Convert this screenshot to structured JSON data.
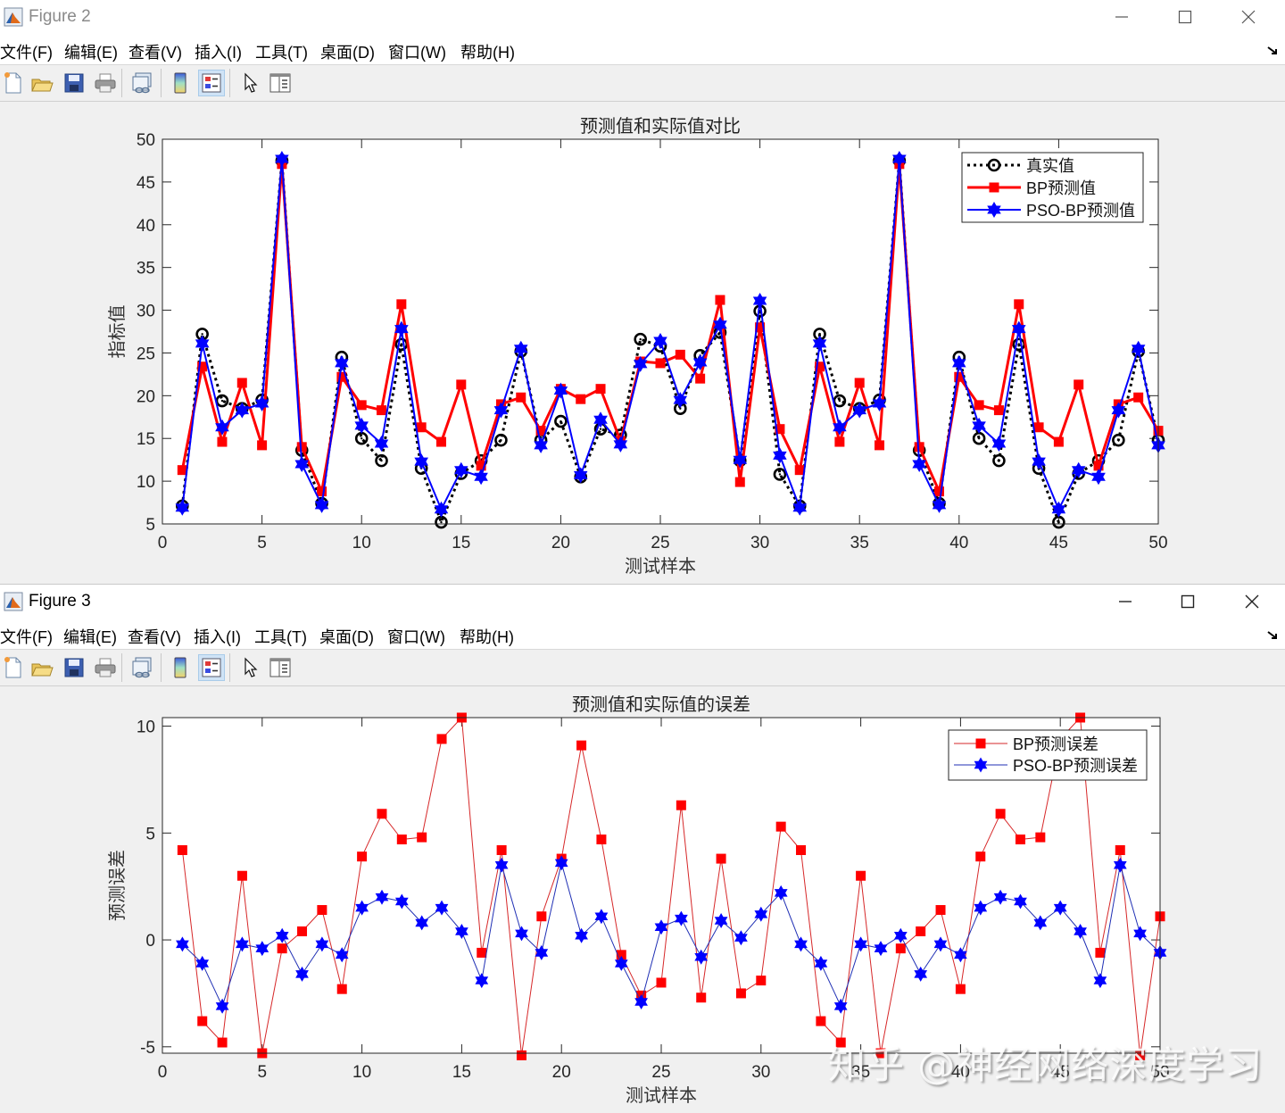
{
  "windows": [
    {
      "title": "Figure 2",
      "menu": [
        "文件(F)",
        "编辑(E)",
        "查看(V)",
        "插入(I)",
        "工具(T)",
        "桌面(D)",
        "窗口(W)",
        "帮助(H)"
      ],
      "toolbar": [
        "new-figure",
        "open-file",
        "save",
        "print",
        "link-plot",
        "insert-colorbar",
        "insert-legend",
        "edit-plot",
        "property-inspector"
      ],
      "controls": [
        "minimize",
        "maximize",
        "close"
      ]
    },
    {
      "title": "Figure 3",
      "menu": [
        "文件(F)",
        "编辑(E)",
        "查看(V)",
        "插入(I)",
        "工具(T)",
        "桌面(D)",
        "窗口(W)",
        "帮助(H)"
      ],
      "toolbar": [
        "new-figure",
        "open-file",
        "save",
        "print",
        "link-plot",
        "insert-colorbar",
        "insert-legend",
        "edit-plot",
        "property-inspector"
      ],
      "controls": [
        "minimize",
        "maximize",
        "close"
      ]
    }
  ],
  "colors": {
    "true": "#000000",
    "bp": "#ff0000",
    "pso": "#0000ff",
    "bp_thin": "#d62728",
    "pso_thin": "#1f2fb4"
  },
  "watermark": "知乎 @神经网络深度学习",
  "chart_data": [
    {
      "type": "line",
      "title": "预测值和实际值对比",
      "xlabel": "测试样本",
      "ylabel": "指标值",
      "xlim": [
        0,
        50
      ],
      "ylim": [
        5,
        50
      ],
      "xticks": [
        0,
        5,
        10,
        15,
        20,
        25,
        30,
        35,
        40,
        45,
        50
      ],
      "yticks": [
        5,
        10,
        15,
        20,
        25,
        30,
        35,
        40,
        45,
        50
      ],
      "legend_position": "northeast",
      "x": [
        1,
        2,
        3,
        4,
        5,
        6,
        7,
        8,
        9,
        10,
        11,
        12,
        13,
        14,
        15,
        16,
        17,
        18,
        19,
        20,
        21,
        22,
        23,
        24,
        25,
        26,
        27,
        28,
        29,
        30,
        31,
        32,
        33,
        34,
        35,
        36,
        37,
        38,
        39,
        40,
        41,
        42,
        43,
        44,
        45,
        46,
        47,
        48,
        49,
        50
      ],
      "series": [
        {
          "name": "真实值",
          "style": "dotted-circle",
          "values": [
            7.1,
            27.2,
            19.4,
            18.5,
            19.5,
            47.5,
            13.6,
            7.4,
            24.5,
            15.0,
            12.4,
            26.0,
            11.5,
            5.2,
            10.9,
            12.4,
            14.8,
            25.2,
            14.8,
            17.0,
            10.5,
            16.1,
            15.4,
            26.6,
            25.8,
            18.5,
            24.7,
            27.4,
            12.4,
            29.9,
            10.8,
            7.1,
            27.2,
            19.4,
            18.5,
            19.5,
            47.5,
            13.6,
            7.4,
            24.5,
            15.0,
            12.4,
            26.0,
            11.5,
            5.2,
            10.9,
            12.4,
            14.8,
            25.2,
            14.8
          ]
        },
        {
          "name": "BP预测值",
          "style": "solid-square",
          "values": [
            11.3,
            23.4,
            14.6,
            21.5,
            14.2,
            47.1,
            14.0,
            8.8,
            22.2,
            18.9,
            18.3,
            30.7,
            16.3,
            14.6,
            21.3,
            11.8,
            19.0,
            19.8,
            15.9,
            20.8,
            19.6,
            20.8,
            14.7,
            24.0,
            23.8,
            24.8,
            22.0,
            31.2,
            9.9,
            28.0,
            16.1,
            11.3,
            23.4,
            14.6,
            21.5,
            14.2,
            47.1,
            14.0,
            8.8,
            22.2,
            18.9,
            18.3,
            30.7,
            16.3,
            14.6,
            21.3,
            11.8,
            19.0,
            19.8,
            15.9
          ]
        },
        {
          "name": "PSO-BP预测值",
          "style": "solid-hexagram",
          "values": [
            6.9,
            26.1,
            16.3,
            18.3,
            19.1,
            47.7,
            12.0,
            7.2,
            23.8,
            16.5,
            14.4,
            27.8,
            12.3,
            6.7,
            11.3,
            10.5,
            18.3,
            25.5,
            14.2,
            20.6,
            10.7,
            17.2,
            14.3,
            23.7,
            26.4,
            19.5,
            23.9,
            28.3,
            12.5,
            31.1,
            13.0,
            6.9,
            26.1,
            16.3,
            18.3,
            19.1,
            47.7,
            12.0,
            7.2,
            23.8,
            16.5,
            14.4,
            27.8,
            12.3,
            6.7,
            11.3,
            10.5,
            18.3,
            25.5,
            14.2
          ]
        }
      ]
    },
    {
      "type": "line",
      "title": "预测值和实际值的误差",
      "xlabel": "测试样本",
      "ylabel": "预测误差",
      "xlim": [
        0,
        50
      ],
      "ylim": [
        -5.3,
        10.4
      ],
      "xticks": [
        0,
        5,
        10,
        15,
        20,
        25,
        30,
        35,
        40,
        45,
        50
      ],
      "yticks": [
        -5,
        0,
        5,
        10
      ],
      "legend_position": "northeast",
      "x": [
        1,
        2,
        3,
        4,
        5,
        6,
        7,
        8,
        9,
        10,
        11,
        12,
        13,
        14,
        15,
        16,
        17,
        18,
        19,
        20,
        21,
        22,
        23,
        24,
        25,
        26,
        27,
        28,
        29,
        30,
        31,
        32,
        33,
        34,
        35,
        36,
        37,
        38,
        39,
        40,
        41,
        42,
        43,
        44,
        45,
        46,
        47,
        48,
        49,
        50
      ],
      "series": [
        {
          "name": "BP预测误差",
          "style": "thin-square",
          "values": [
            4.2,
            -3.8,
            -4.8,
            3.0,
            -5.3,
            -0.4,
            0.4,
            1.4,
            -2.3,
            3.9,
            5.9,
            4.7,
            4.8,
            9.4,
            10.4,
            -0.6,
            4.2,
            -5.4,
            1.1,
            3.8,
            9.1,
            4.7,
            -0.7,
            -2.6,
            -2.0,
            6.3,
            -2.7,
            3.8,
            -2.5,
            -1.9,
            5.3,
            4.2,
            -3.8,
            -4.8,
            3.0,
            -5.3,
            -0.4,
            0.4,
            1.4,
            -2.3,
            3.9,
            5.9,
            4.7,
            4.8,
            9.4,
            10.4,
            -0.6,
            4.2,
            -5.4,
            1.1
          ]
        },
        {
          "name": "PSO-BP预测误差",
          "style": "thin-hexagram",
          "values": [
            -0.2,
            -1.1,
            -3.1,
            -0.2,
            -0.4,
            0.2,
            -1.6,
            -0.2,
            -0.7,
            1.5,
            2.0,
            1.8,
            0.8,
            1.5,
            0.4,
            -1.9,
            3.5,
            0.3,
            -0.6,
            3.6,
            0.2,
            1.1,
            -1.1,
            -2.9,
            0.6,
            1.0,
            -0.8,
            0.9,
            0.1,
            1.2,
            2.2,
            -0.2,
            -1.1,
            -3.1,
            -0.2,
            -0.4,
            0.2,
            -1.6,
            -0.2,
            -0.7,
            1.5,
            2.0,
            1.8,
            0.8,
            1.5,
            0.4,
            -1.9,
            3.5,
            0.3,
            -0.6
          ]
        }
      ]
    }
  ]
}
